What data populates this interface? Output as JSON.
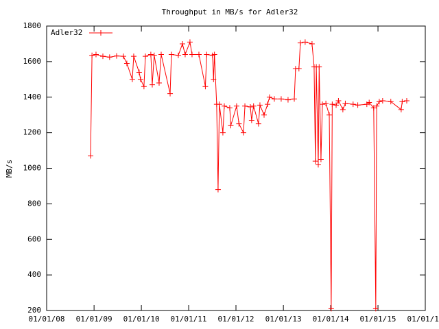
{
  "chart_data": {
    "type": "line",
    "title": "Throughput in MB/s for Adler32",
    "ylabel": "MB/s",
    "x": [
      "2008-12-05",
      "2008-12-16",
      "2009-01-16",
      "2009-03-10",
      "2009-05-01",
      "2009-06-24",
      "2009-08-15",
      "2009-09-11",
      "2009-10-23",
      "2009-11-03",
      "2009-12-15",
      "2009-12-26",
      "2010-01-21",
      "2010-02-01",
      "2010-03-15",
      "2010-03-26",
      "2010-04-10",
      "2010-05-18",
      "2010-06-03",
      "2010-08-11",
      "2010-08-21",
      "2010-10-13",
      "2010-11-14",
      "2010-12-05",
      "2011-01-11",
      "2011-01-27",
      "2011-03-21",
      "2011-05-10",
      "2011-05-20",
      "2011-07-04",
      "2011-07-12",
      "2011-07-19",
      "2011-08-05",
      "2011-08-16",
      "2011-08-26",
      "2011-09-22",
      "2011-10-03",
      "2011-11-14",
      "2011-11-22",
      "2012-01-06",
      "2012-01-24",
      "2012-02-28",
      "2012-03-10",
      "2012-04-21",
      "2012-05-01",
      "2012-05-16",
      "2012-06-23",
      "2012-07-04",
      "2012-08-05",
      "2012-09-01",
      "2012-09-16",
      "2012-10-23",
      "2012-12-15",
      "2013-02-06",
      "2013-03-26",
      "2013-04-05",
      "2013-05-01",
      "2013-05-12",
      "2013-06-18",
      "2013-08-10",
      "2013-08-26",
      "2013-09-05",
      "2013-09-12",
      "2013-09-27",
      "2013-10-04",
      "2013-10-18",
      "2013-10-29",
      "2013-11-25",
      "2013-12-21",
      "2014-01-05",
      "2014-01-13",
      "2014-02-12",
      "2014-03-02",
      "2014-04-05",
      "2014-04-24",
      "2014-06-23",
      "2014-07-29",
      "2014-10-07",
      "2014-10-25",
      "2014-11-29",
      "2014-12-15",
      "2014-12-22",
      "2015-01-11",
      "2015-02-06",
      "2015-04-10",
      "2015-06-29",
      "2015-07-07",
      "2015-08-11"
    ],
    "series": [
      {
        "name": "Adler32",
        "color": "#ff0000",
        "values": [
          1070,
          1635,
          1640,
          1630,
          1625,
          1632,
          1630,
          1590,
          1500,
          1630,
          1540,
          1500,
          1460,
          1630,
          1640,
          1470,
          1635,
          1480,
          1640,
          1420,
          1640,
          1635,
          1700,
          1640,
          1710,
          1640,
          1640,
          1460,
          1640,
          1635,
          1500,
          1640,
          1360,
          880,
          1360,
          1200,
          1350,
          1340,
          1240,
          1350,
          1250,
          1200,
          1350,
          1345,
          1270,
          1350,
          1250,
          1355,
          1300,
          1360,
          1400,
          1390,
          1390,
          1385,
          1390,
          1560,
          1560,
          1705,
          1710,
          1700,
          1570,
          1040,
          1570,
          1020,
          1570,
          1050,
          1360,
          1365,
          1300,
          210,
          1360,
          1355,
          1380,
          1330,
          1365,
          1360,
          1355,
          1360,
          1370,
          1340,
          210,
          1350,
          1375,
          1380,
          1375,
          1330,
          1375,
          1380
        ]
      }
    ],
    "xlim": [
      "2008-01-01",
      "2016-01-01"
    ],
    "xticks": [
      {
        "value": "2008-01-01",
        "label": "01/01/08"
      },
      {
        "value": "2009-01-01",
        "label": "01/01/09"
      },
      {
        "value": "2010-01-01",
        "label": "01/01/10"
      },
      {
        "value": "2011-01-01",
        "label": "01/01/11"
      },
      {
        "value": "2012-01-01",
        "label": "01/01/12"
      },
      {
        "value": "2013-01-01",
        "label": "01/01/13"
      },
      {
        "value": "2014-01-01",
        "label": "01/01/14"
      },
      {
        "value": "2015-01-01",
        "label": "01/01/15"
      },
      {
        "value": "2016-01-01",
        "label": "01/01/16"
      }
    ],
    "ylim": [
      200,
      1800
    ],
    "yticks": [
      200,
      400,
      600,
      800,
      1000,
      1200,
      1400,
      1600,
      1800
    ],
    "legend": "top-left"
  }
}
